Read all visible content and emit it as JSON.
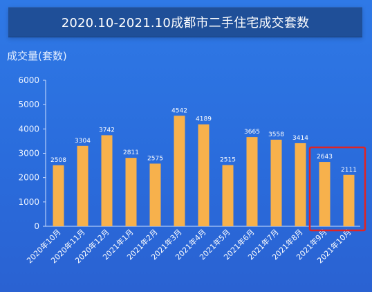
{
  "chart_data": {
    "type": "bar",
    "title": "2020.10-2021.10成都市二手住宅成交套数",
    "ylabel": "成交量(套数)",
    "xlabel": "",
    "ylim": [
      0,
      6000
    ],
    "yticks": [
      "0",
      "1000",
      "2000",
      "3000",
      "4000",
      "5000",
      "6000"
    ],
    "categories": [
      "2020年10月",
      "2020年11月",
      "2020年12月",
      "2021年1月",
      "2021年2月",
      "2021年3月",
      "2021年4月",
      "2021年5月",
      "2021年6月",
      "2021年7月",
      "2021年8月",
      "2021年9月",
      "2021年10月"
    ],
    "values": [
      2508,
      3304,
      3742,
      2811,
      2575,
      4542,
      4189,
      2515,
      3665,
      3558,
      3414,
      2643,
      2111
    ],
    "grid": false,
    "bar_color": "#f7b14c",
    "highlight": {
      "categories": [
        "2021年9月",
        "2021年10月"
      ],
      "color": "#e02424"
    }
  }
}
